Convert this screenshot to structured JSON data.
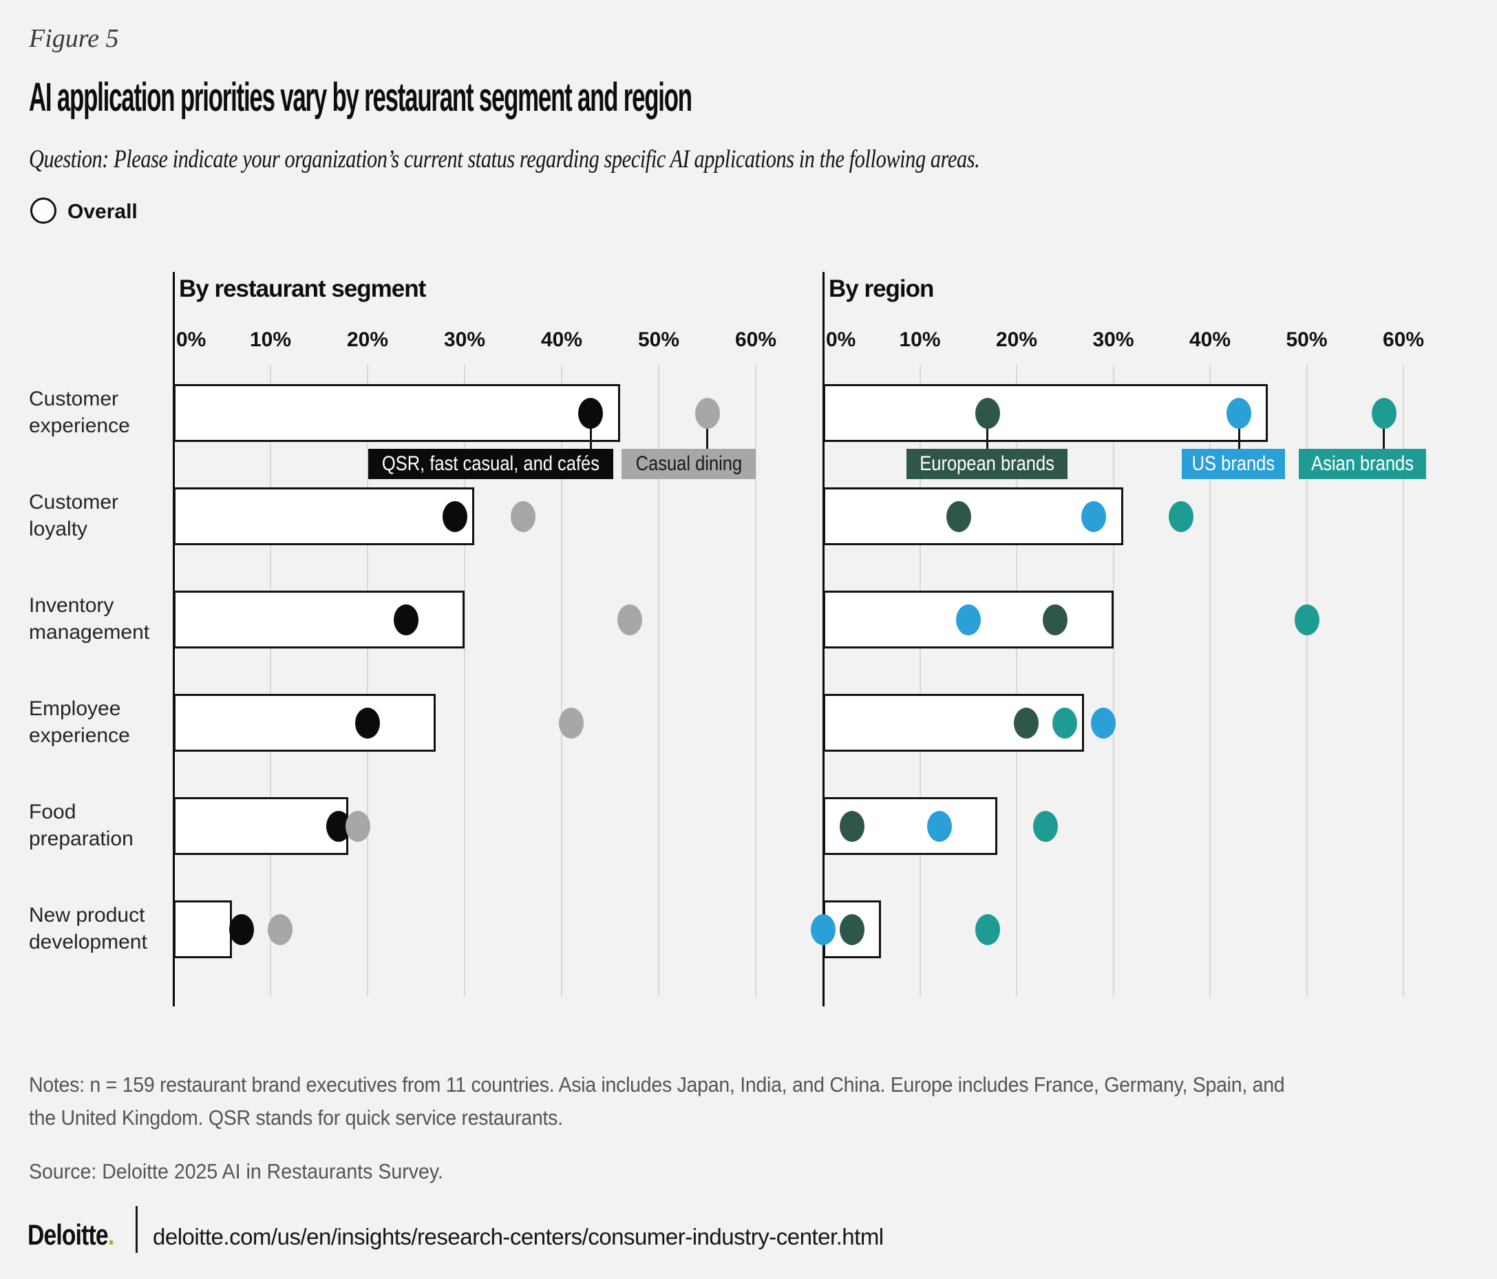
{
  "figure_label": "Figure 5",
  "title": "AI application priorities vary by restaurant segment and region",
  "question": "Question: Please indicate your organization’s current status regarding specific AI applications in the following areas.",
  "overall_legend": {
    "label": "Overall"
  },
  "colors": {
    "background": "#f2f2f2",
    "bar_fill": "#ffffff",
    "bar_border": "#121212",
    "gridline": "#d9d9d9",
    "axis": "#0a0a0a",
    "text_muted": "#545557",
    "deloitte_green": "#86bc25"
  },
  "chart_data": {
    "type": "bar",
    "subtype": "overall-bars-with-group-dots",
    "categories": [
      {
        "label": "Customer experience",
        "lines": [
          "Customer",
          "experience"
        ]
      },
      {
        "label": "Customer loyalty",
        "lines": [
          "Customer",
          "loyalty"
        ]
      },
      {
        "label": "Inventory management",
        "lines": [
          "Inventory",
          "management"
        ]
      },
      {
        "label": "Employee experience",
        "lines": [
          "Employee",
          "experience"
        ]
      },
      {
        "label": "Food preparation",
        "lines": [
          "Food",
          "preparation"
        ]
      },
      {
        "label": "New product development",
        "lines": [
          "New product",
          "development"
        ]
      }
    ],
    "xlim": [
      0,
      60
    ],
    "ticks": [
      "0%",
      "10%",
      "20%",
      "30%",
      "40%",
      "50%",
      "60%"
    ],
    "overall_series_name": "Overall",
    "panels": [
      {
        "title": "By restaurant segment",
        "overall_values": [
          46,
          31,
          30,
          27,
          18,
          6
        ],
        "series": [
          {
            "name": "QSR, fast casual, and cafés",
            "color": "#0b0b0b",
            "label_text": "#ffffff",
            "values": [
              43,
              29,
              24,
              20,
              17,
              7
            ]
          },
          {
            "name": "Casual dining",
            "color": "#a6a7a9",
            "label_text": "#1a1a1a",
            "values": [
              55,
              36,
              47,
              41,
              19,
              11
            ]
          }
        ]
      },
      {
        "title": "By region",
        "overall_values": [
          46,
          31,
          30,
          27,
          18,
          6
        ],
        "series": [
          {
            "name": "European brands",
            "color": "#2e574a",
            "label_text": "#ffffff",
            "values": [
              17,
              14,
              24,
              21,
              3,
              3
            ]
          },
          {
            "name": "US brands",
            "color": "#2b9fd8",
            "label_text": "#ffffff",
            "values": [
              43,
              28,
              15,
              29,
              12,
              0
            ]
          },
          {
            "name": "Asian brands",
            "color": "#1e9c94",
            "label_text": "#ffffff",
            "values": [
              58,
              37,
              50,
              25,
              23,
              17
            ]
          }
        ]
      }
    ],
    "legend_position": "below-first-row"
  },
  "notes_line1": "Notes: n = 159 restaurant brand executives from 11 countries.  Asia includes Japan, India, and China. Europe includes France, Germany, Spain, and",
  "notes_line2": "the United Kingdom. QSR stands for quick service restaurants.",
  "source": "Source: Deloitte 2025 AI in Restaurants Survey.",
  "footer": {
    "brand": "Deloitte",
    "brand_period": ".",
    "url": "deloitte.com/us/en/insights/research-centers/consumer-industry-center.html"
  }
}
